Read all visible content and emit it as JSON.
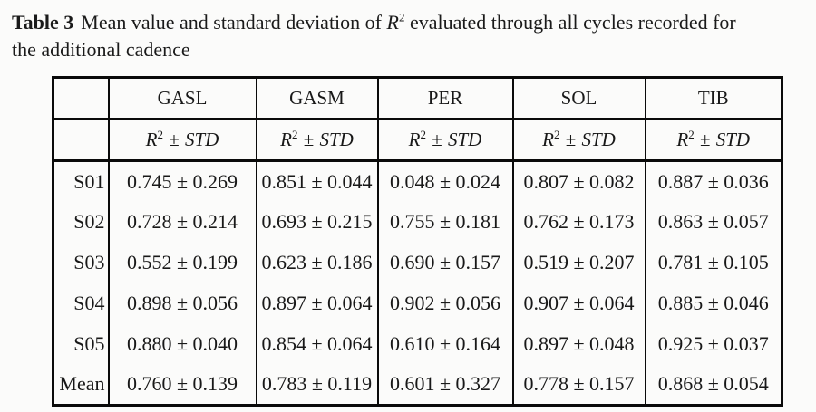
{
  "caption": {
    "label": "Table 3",
    "line1_before_r2": "Mean value and standard deviation of",
    "r2_base": "R",
    "r2_sup": "2",
    "line1_after_r2": "evaluated through all cycles recorded for",
    "line2": "the additional cadence"
  },
  "table": {
    "muscle_headers": [
      "GASL",
      "GASM",
      "PER",
      "SOL",
      "TIB"
    ],
    "metric": {
      "base": "R",
      "sup": "2",
      "pm": "±",
      "std": "STD"
    },
    "rows": [
      {
        "label": "S01",
        "values": [
          "0.745 ± 0.269",
          "0.851 ± 0.044",
          "0.048 ± 0.024",
          "0.807 ± 0.082",
          "0.887 ± 0.036"
        ]
      },
      {
        "label": "S02",
        "values": [
          "0.728 ± 0.214",
          "0.693 ± 0.215",
          "0.755 ± 0.181",
          "0.762 ± 0.173",
          "0.863 ± 0.057"
        ]
      },
      {
        "label": "S03",
        "values": [
          "0.552 ± 0.199",
          "0.623 ± 0.186",
          "0.690 ± 0.157",
          "0.519 ± 0.207",
          "0.781 ± 0.105"
        ]
      },
      {
        "label": "S04",
        "values": [
          "0.898 ± 0.056",
          "0.897 ± 0.064",
          "0.902 ± 0.056",
          "0.907 ± 0.064",
          "0.885 ± 0.046"
        ]
      },
      {
        "label": "S05",
        "values": [
          "0.880 ± 0.040",
          "0.854 ± 0.064",
          "0.610 ± 0.164",
          "0.897 ± 0.048",
          "0.925 ± 0.037"
        ]
      },
      {
        "label": "Mean",
        "values": [
          "0.760 ± 0.139",
          "0.783 ± 0.119",
          "0.601 ± 0.327",
          "0.778 ± 0.157",
          "0.868 ± 0.054"
        ]
      }
    ]
  },
  "chart_data": {
    "type": "table",
    "title": "Table 3 Mean value and standard deviation of R2 evaluated through all cycles recorded for the additional cadence",
    "columns": [
      "",
      "GASL",
      "GASM",
      "PER",
      "SOL",
      "TIB"
    ],
    "unit_row": "R2 ± STD",
    "rows": [
      [
        "S01",
        "0.745 ± 0.269",
        "0.851 ± 0.044",
        "0.048 ± 0.024",
        "0.807 ± 0.082",
        "0.887 ± 0.036"
      ],
      [
        "S02",
        "0.728 ± 0.214",
        "0.693 ± 0.215",
        "0.755 ± 0.181",
        "0.762 ± 0.173",
        "0.863 ± 0.057"
      ],
      [
        "S03",
        "0.552 ± 0.199",
        "0.623 ± 0.186",
        "0.690 ± 0.157",
        "0.519 ± 0.207",
        "0.781 ± 0.105"
      ],
      [
        "S04",
        "0.898 ± 0.056",
        "0.897 ± 0.064",
        "0.902 ± 0.056",
        "0.907 ± 0.064",
        "0.885 ± 0.046"
      ],
      [
        "S05",
        "0.880 ± 0.040",
        "0.854 ± 0.064",
        "0.610 ± 0.164",
        "0.897 ± 0.048",
        "0.925 ± 0.037"
      ],
      [
        "Mean",
        "0.760 ± 0.139",
        "0.783 ± 0.119",
        "0.601 ± 0.327",
        "0.778 ± 0.157",
        "0.868 ± 0.054"
      ]
    ]
  }
}
